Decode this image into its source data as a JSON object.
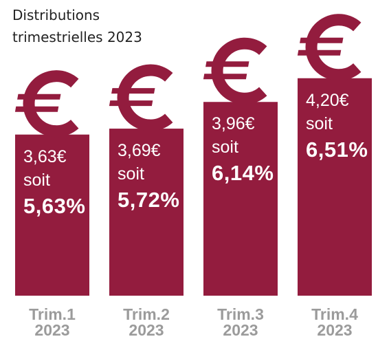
{
  "chart_data": {
    "type": "bar",
    "title": "Distributions trimestrielles 2023",
    "categories": [
      "Trim.1 2023",
      "Trim.2 2023",
      "Trim.3 2023",
      "Trim.4 2023"
    ],
    "values": [
      3.63,
      3.69,
      3.96,
      4.2
    ],
    "value_labels": [
      "3,63€",
      "3,69€",
      "3,96€",
      "4,20€"
    ],
    "connector": "soit",
    "pct_values": [
      5.63,
      5.72,
      6.14,
      6.51
    ],
    "pct_labels": [
      "5,63%",
      "5,72%",
      "6,14%",
      "6,51%"
    ],
    "color": "#931c3e",
    "ylim": [
      2,
      4.4
    ]
  }
}
